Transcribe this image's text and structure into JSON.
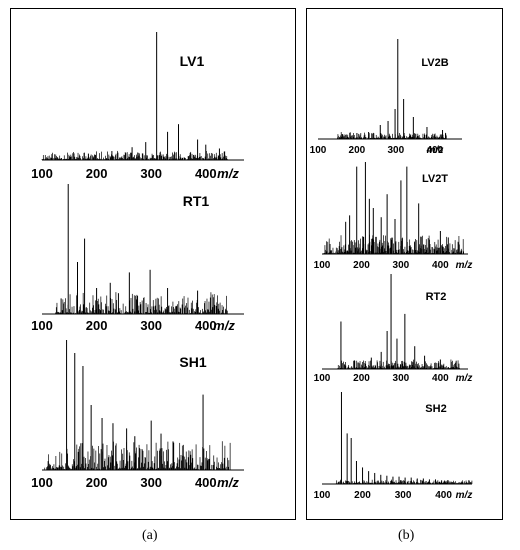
{
  "figure": {
    "captions": [
      "(a)",
      "(b)"
    ]
  },
  "chart_data": [
    {
      "panel": "a",
      "type": "bar",
      "title": "LV1",
      "xlabel": "m/z",
      "xlim": [
        100,
        470
      ],
      "xticks": [
        100,
        200,
        300,
        400
      ],
      "peaks": [
        [
          310,
          100
        ],
        [
          350,
          28
        ],
        [
          330,
          22
        ],
        [
          385,
          16
        ],
        [
          290,
          14
        ],
        [
          265,
          10
        ],
        [
          400,
          12
        ],
        [
          425,
          9
        ],
        [
          228,
          7
        ],
        [
          185,
          5
        ],
        [
          150,
          3
        ]
      ],
      "noise": {
        "from": 100,
        "to": 440,
        "level": 6,
        "seed": 11
      }
    },
    {
      "panel": "a",
      "type": "bar",
      "title": "RT1",
      "xlabel": "m/z",
      "xlim": [
        100,
        470
      ],
      "xticks": [
        100,
        200,
        300,
        400
      ],
      "peaks": [
        [
          148,
          100
        ],
        [
          178,
          58
        ],
        [
          165,
          40
        ],
        [
          260,
          32
        ],
        [
          298,
          34
        ],
        [
          225,
          24
        ],
        [
          330,
          20
        ],
        [
          385,
          18
        ],
        [
          200,
          20
        ],
        [
          135,
          12
        ],
        [
          240,
          16
        ],
        [
          275,
          14
        ]
      ],
      "noise": {
        "from": 125,
        "to": 440,
        "level": 16,
        "seed": 23
      }
    },
    {
      "panel": "a",
      "type": "bar",
      "title": "SH1",
      "xlabel": "m/z",
      "xlim": [
        100,
        470
      ],
      "xticks": [
        100,
        200,
        300,
        400
      ],
      "peaks": [
        [
          145,
          100
        ],
        [
          160,
          90
        ],
        [
          175,
          80
        ],
        [
          190,
          50
        ],
        [
          210,
          40
        ],
        [
          230,
          36
        ],
        [
          255,
          32
        ],
        [
          300,
          38
        ],
        [
          318,
          28
        ],
        [
          395,
          58
        ],
        [
          340,
          22
        ],
        [
          270,
          26
        ]
      ],
      "noise": {
        "from": 105,
        "to": 445,
        "level": 22,
        "seed": 37
      }
    },
    {
      "panel": "b",
      "type": "bar",
      "title": "LV2B",
      "xlabel": "m/z",
      "xlim": [
        100,
        470
      ],
      "xticks": [
        100,
        200,
        300,
        400
      ],
      "peaks": [
        [
          305,
          100
        ],
        [
          298,
          30
        ],
        [
          320,
          40
        ],
        [
          345,
          22
        ],
        [
          280,
          18
        ],
        [
          260,
          14
        ],
        [
          380,
          12
        ],
        [
          420,
          9
        ],
        [
          230,
          7
        ],
        [
          200,
          6
        ]
      ],
      "noise": {
        "from": 150,
        "to": 430,
        "level": 6,
        "seed": 41
      }
    },
    {
      "panel": "b",
      "type": "bar",
      "title": "LV2T",
      "xlabel": "m/z",
      "xlim": [
        100,
        470
      ],
      "xticks": [
        100,
        200,
        300,
        400
      ],
      "peaks": [
        [
          210,
          100
        ],
        [
          188,
          95
        ],
        [
          315,
          95
        ],
        [
          300,
          80
        ],
        [
          265,
          65
        ],
        [
          220,
          60
        ],
        [
          345,
          55
        ],
        [
          230,
          50
        ],
        [
          170,
          42
        ],
        [
          160,
          35
        ],
        [
          250,
          40
        ],
        [
          285,
          38
        ],
        [
          400,
          25
        ],
        [
          420,
          18
        ]
      ],
      "noise": {
        "from": 105,
        "to": 460,
        "level": 20,
        "seed": 53
      }
    },
    {
      "panel": "b",
      "type": "bar",
      "title": "RT2",
      "xlabel": "m/z",
      "xlim": [
        100,
        470
      ],
      "xticks": [
        100,
        200,
        300,
        400
      ],
      "peaks": [
        [
          275,
          100
        ],
        [
          310,
          58
        ],
        [
          148,
          50
        ],
        [
          265,
          40
        ],
        [
          290,
          32
        ],
        [
          335,
          24
        ],
        [
          250,
          18
        ],
        [
          360,
          14
        ],
        [
          225,
          12
        ],
        [
          400,
          10
        ],
        [
          440,
          8
        ]
      ],
      "noise": {
        "from": 140,
        "to": 450,
        "level": 9,
        "seed": 67
      }
    },
    {
      "panel": "b",
      "type": "bar",
      "title": "SH2",
      "xlabel": "m/z",
      "xlim": [
        100,
        470
      ],
      "xticks": [
        100,
        200,
        300,
        400
      ],
      "peaks": [
        [
          148,
          100
        ],
        [
          162,
          55
        ],
        [
          172,
          50
        ],
        [
          185,
          25
        ],
        [
          200,
          18
        ],
        [
          215,
          14
        ],
        [
          230,
          12
        ],
        [
          245,
          10
        ],
        [
          260,
          9
        ],
        [
          275,
          8
        ],
        [
          290,
          8
        ],
        [
          305,
          7
        ],
        [
          320,
          7
        ],
        [
          335,
          6
        ],
        [
          350,
          6
        ],
        [
          365,
          5
        ],
        [
          380,
          5
        ],
        [
          395,
          4
        ],
        [
          410,
          4
        ]
      ],
      "noise": {
        "from": 135,
        "to": 470,
        "level": 4,
        "seed": 79
      }
    }
  ]
}
